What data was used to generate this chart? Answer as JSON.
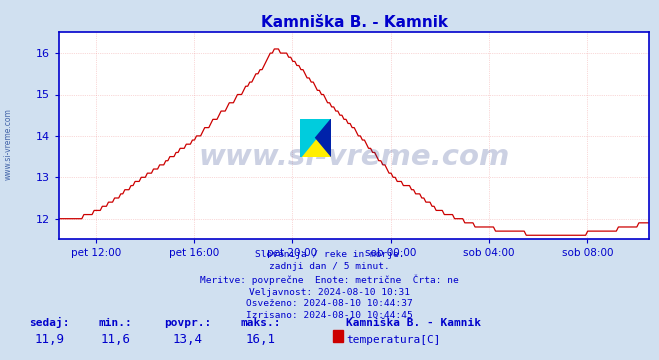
{
  "title": "Kamniška B. - Kamnik",
  "title_color": "#0000cc",
  "bg_color": "#d0e0f0",
  "plot_bg_color": "#ffffff",
  "line_color": "#cc0000",
  "axis_color": "#0000cc",
  "tick_color": "#0000cc",
  "grid_color": "#f0a0a0",
  "grid_minor_color": "#e8e8f8",
  "ylabel_left_text": "www.si-vreme.com",
  "ylim": [
    11.5,
    16.5
  ],
  "yticks": [
    12,
    13,
    14,
    15,
    16
  ],
  "x_labels": [
    "pet 12:00",
    "pet 16:00",
    "pet 20:00",
    "sob 00:00",
    "sob 04:00",
    "sob 08:00"
  ],
  "info_lines": [
    "Slovenija / reke in morje.",
    "zadnji dan / 5 minut.",
    "Meritve: povprečne  Enote: metrične  Črta: ne",
    "Veljavnost: 2024-08-10 10:31",
    "Osveženo: 2024-08-10 10:44:37",
    "Izrisano: 2024-08-10 10:44:45"
  ],
  "stats_labels": [
    "sedaj:",
    "min.:",
    "povpr.:",
    "maks.:"
  ],
  "stats_values": [
    "11,9",
    "11,6",
    "13,4",
    "16,1"
  ],
  "legend_station": "Kamniška B. - Kamnik",
  "legend_param": "temperatura[C]",
  "legend_color": "#cc0000",
  "watermark": "www.si-vreme.com",
  "watermark_color": "#1a3080",
  "watermark_alpha": 0.22,
  "key_t": [
    0,
    8,
    15,
    18,
    22,
    28,
    33,
    38,
    44,
    50,
    55,
    60,
    66,
    72,
    78,
    84,
    90,
    95,
    100,
    103,
    106,
    110,
    115,
    120,
    125,
    130,
    135,
    140,
    145,
    150,
    155,
    160,
    165,
    170,
    175,
    180,
    185,
    190,
    195,
    200,
    205,
    210,
    215,
    220,
    225,
    230,
    235,
    240,
    245,
    250,
    255,
    260,
    265,
    270,
    275,
    280,
    285,
    288
  ],
  "key_v": [
    12.0,
    12.0,
    12.1,
    12.2,
    12.3,
    12.5,
    12.7,
    12.9,
    13.1,
    13.3,
    13.5,
    13.7,
    13.9,
    14.2,
    14.5,
    14.8,
    15.1,
    15.4,
    15.7,
    16.0,
    16.1,
    16.0,
    15.8,
    15.5,
    15.2,
    14.9,
    14.6,
    14.4,
    14.1,
    13.8,
    13.5,
    13.2,
    12.9,
    12.8,
    12.6,
    12.4,
    12.2,
    12.1,
    12.0,
    11.9,
    11.8,
    11.8,
    11.7,
    11.7,
    11.7,
    11.6,
    11.6,
    11.6,
    11.6,
    11.6,
    11.6,
    11.7,
    11.7,
    11.7,
    11.8,
    11.8,
    11.9,
    11.9
  ]
}
